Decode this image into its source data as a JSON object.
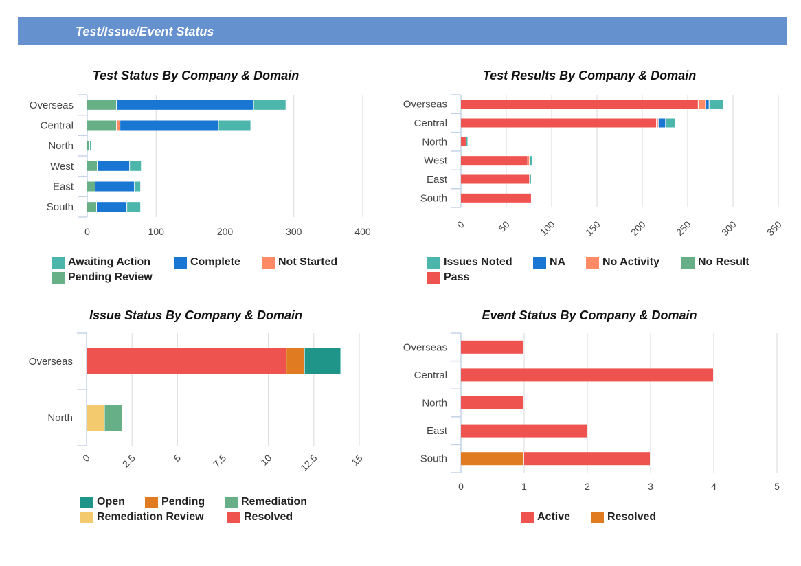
{
  "header": {
    "title": "Test/Issue/Event Status"
  },
  "chart_data": [
    {
      "type": "bar",
      "orientation": "horizontal",
      "stacked": true,
      "title": "Test Status By Company & Domain",
      "categories": [
        "Overseas",
        "Central",
        "North",
        "West",
        "East",
        "South"
      ],
      "xlim": [
        0,
        400
      ],
      "ticks": [
        "0",
        "100",
        "200",
        "300",
        "400"
      ],
      "tick_values": [
        0,
        100,
        200,
        300,
        400
      ],
      "grid": true,
      "legend": "bottom",
      "series": [
        {
          "name": "Awaiting Action",
          "color": "#4db6ac",
          "values": [
            47,
            47,
            2,
            17,
            9,
            20
          ]
        },
        {
          "name": "Complete",
          "color": "#1976d2",
          "values": [
            199,
            143,
            0,
            47,
            57,
            44
          ]
        },
        {
          "name": "Not Started",
          "color": "#ff8a65",
          "values": [
            0,
            5,
            0,
            0,
            0,
            0
          ]
        },
        {
          "name": "Pending Review",
          "color": "#67b087",
          "values": [
            43,
            43,
            4,
            15,
            12,
            14
          ]
        }
      ]
    },
    {
      "type": "bar",
      "orientation": "horizontal",
      "stacked": true,
      "title": "Test Results By  Company & Domain",
      "categories": [
        "Overseas",
        "Central",
        "North",
        "West",
        "East",
        "South"
      ],
      "xlim": [
        0,
        350
      ],
      "ticks": [
        "0",
        "50",
        "100",
        "150",
        "200",
        "250",
        "300",
        "350"
      ],
      "tick_values": [
        0,
        50,
        100,
        150,
        200,
        250,
        300,
        350
      ],
      "grid": true,
      "legend": "bottom",
      "series": [
        {
          "name": "Issues Noted",
          "color": "#4db6ac",
          "values": [
            16,
            11,
            2,
            3,
            2,
            0
          ]
        },
        {
          "name": "NA",
          "color": "#1976d2",
          "values": [
            4,
            8,
            0,
            0,
            0,
            0
          ]
        },
        {
          "name": "No Activity",
          "color": "#ff8a65",
          "values": [
            8,
            2,
            0,
            2,
            0,
            0
          ]
        },
        {
          "name": "No Result",
          "color": "#67b087",
          "values": [
            0,
            0,
            0,
            0,
            0,
            0
          ]
        },
        {
          "name": "Pass",
          "color": "#ef5350",
          "values": [
            262,
            216,
            6,
            74,
            76,
            78
          ]
        }
      ]
    },
    {
      "type": "bar",
      "orientation": "horizontal",
      "stacked": true,
      "title": "Issue Status By Company & Domain",
      "categories": [
        "Overseas",
        "North"
      ],
      "xlim": [
        0,
        15
      ],
      "ticks": [
        "0",
        "2.5",
        "5",
        "7.5",
        "10",
        "12.5",
        "15"
      ],
      "tick_values": [
        0,
        2.5,
        5,
        7.5,
        10,
        12.5,
        15
      ],
      "grid": true,
      "legend": "bottom",
      "series": [
        {
          "name": "Open",
          "color": "#1f9488",
          "values": [
            2,
            0
          ]
        },
        {
          "name": "Pending",
          "color": "#e07b22",
          "values": [
            1,
            0
          ]
        },
        {
          "name": "Remediation",
          "color": "#67b087",
          "values": [
            0,
            1
          ]
        },
        {
          "name": "Remediation Review",
          "color": "#f3cb6e",
          "values": [
            0,
            1
          ]
        },
        {
          "name": "Resolved",
          "color": "#ef5350",
          "values": [
            11,
            0
          ]
        }
      ]
    },
    {
      "type": "bar",
      "orientation": "horizontal",
      "stacked": true,
      "title": "Event Status By Company & Domain",
      "categories": [
        "Overseas",
        "Central",
        "North",
        "East",
        "South"
      ],
      "xlim": [
        0,
        5
      ],
      "ticks": [
        "0",
        "1",
        "2",
        "3",
        "4",
        "5"
      ],
      "tick_values": [
        0,
        1,
        2,
        3,
        4,
        5
      ],
      "grid": true,
      "legend": "bottom",
      "series": [
        {
          "name": "Active",
          "color": "#ef5350",
          "values": [
            1,
            4,
            1,
            2,
            2
          ]
        },
        {
          "name": "Resolved",
          "color": "#e07b22",
          "values": [
            0,
            0,
            0,
            0,
            1
          ]
        }
      ]
    }
  ]
}
